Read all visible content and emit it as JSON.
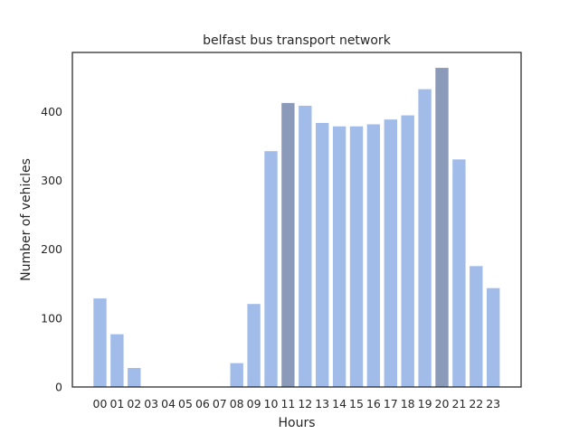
{
  "chart_data": {
    "type": "bar",
    "title": "belfast bus transport network",
    "xlabel": "Hours",
    "ylabel": "Number of vehicles",
    "categories": [
      "00",
      "01",
      "02",
      "03",
      "04",
      "05",
      "06",
      "07",
      "08",
      "09",
      "10",
      "11",
      "12",
      "13",
      "14",
      "15",
      "16",
      "17",
      "18",
      "19",
      "20",
      "21",
      "22",
      "23"
    ],
    "values": [
      129,
      77,
      28,
      0,
      0,
      0,
      0,
      0,
      35,
      121,
      343,
      413,
      409,
      384,
      379,
      379,
      382,
      389,
      395,
      433,
      464,
      331,
      176,
      144
    ],
    "highlighted": [
      "11",
      "20"
    ],
    "yticks": [
      0,
      100,
      200,
      300,
      400
    ],
    "ylim": [
      0,
      486
    ],
    "grid": false,
    "colors": {
      "bar": "#a2bce9",
      "highlight": "#8b9ab8",
      "axis": "#262626"
    }
  }
}
